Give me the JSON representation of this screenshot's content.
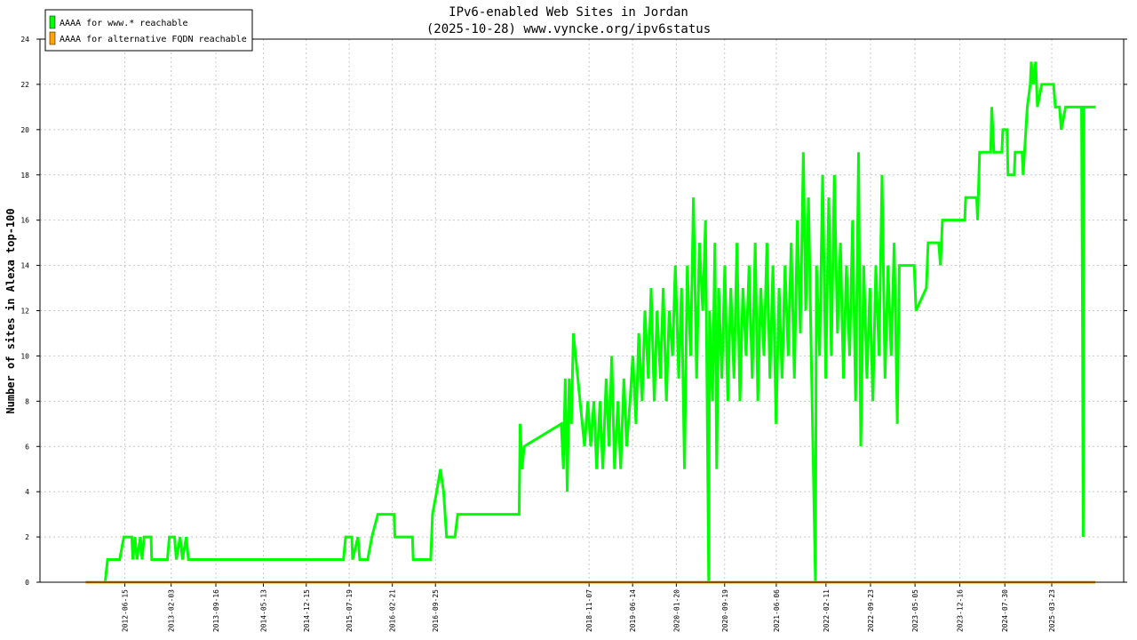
{
  "chart_data": {
    "type": "line",
    "title": "IPv6-enabled Web Sites in Jordan",
    "subtitle": "(2025-10-28) www.vyncke.org/ipv6status",
    "y_label": "Number of sites in Alexa top-100",
    "xlim": [
      "2011-04-15",
      "2026-03-20"
    ],
    "xticks": [
      "2012-06-15",
      "2013-02-03",
      "2013-09-16",
      "2014-05-13",
      "2014-12-15",
      "2015-07-19",
      "2016-02-21",
      "2016-09-25",
      "2018-11-07",
      "2019-06-14",
      "2020-01-20",
      "2020-09-19",
      "2021-06-06",
      "2022-02-11",
      "2022-09-23",
      "2023-05-05",
      "2023-12-16",
      "2024-07-30",
      "2025-03-23"
    ],
    "ylim": [
      0,
      24
    ],
    "yticks": [
      0,
      2,
      4,
      6,
      8,
      10,
      12,
      14,
      16,
      18,
      20,
      22,
      24
    ],
    "grid": true,
    "legend": "upper-left",
    "series": [
      {
        "name": "AAAA for www.* reachable",
        "color": "#00ff00",
        "x": [
          "2012-03-08",
          "2012-03-20",
          "2012-05-20",
          "2012-06-10",
          "2012-07-20",
          "2012-07-25",
          "2012-08-05",
          "2012-08-15",
          "2012-09-01",
          "2012-09-10",
          "2012-09-20",
          "2012-10-25",
          "2012-10-28",
          "2013-01-15",
          "2013-01-25",
          "2013-02-20",
          "2013-03-01",
          "2013-03-20",
          "2013-04-01",
          "2013-04-20",
          "2013-05-01",
          "2015-06-20",
          "2015-07-01",
          "2015-08-01",
          "2015-08-05",
          "2015-09-01",
          "2015-09-10",
          "2015-10-20",
          "2015-11-10",
          "2015-12-10",
          "2016-03-01",
          "2016-03-05",
          "2016-06-01",
          "2016-06-05",
          "2016-09-01",
          "2016-09-10",
          "2016-10-01",
          "2016-10-20",
          "2016-11-05",
          "2016-11-20",
          "2017-01-01",
          "2017-01-15",
          "2017-11-20",
          "2017-11-25",
          "2017-12-05",
          "2017-12-15",
          "2018-06-20",
          "2018-07-01",
          "2018-07-10",
          "2018-07-20",
          "2018-07-30",
          "2018-08-10",
          "2018-08-20",
          "2018-10-15",
          "2018-11-01",
          "2018-11-15",
          "2018-12-01",
          "2018-12-15",
          "2019-01-01",
          "2019-01-15",
          "2019-02-01",
          "2019-02-15",
          "2019-03-01",
          "2019-03-15",
          "2019-04-01",
          "2019-04-15",
          "2019-05-01",
          "2019-05-15",
          "2019-06-01",
          "2019-06-15",
          "2019-07-01",
          "2019-07-15",
          "2019-08-01",
          "2019-08-15",
          "2019-09-01",
          "2019-09-15",
          "2019-10-01",
          "2019-10-15",
          "2019-11-01",
          "2019-11-15",
          "2019-12-01",
          "2019-12-15",
          "2020-01-01",
          "2020-01-15",
          "2020-02-01",
          "2020-02-15",
          "2020-03-01",
          "2020-03-15",
          "2020-04-01",
          "2020-04-15",
          "2020-05-01",
          "2020-05-15",
          "2020-06-01",
          "2020-06-15",
          "2020-07-01",
          "2020-07-05",
          "2020-07-20",
          "2020-08-01",
          "2020-08-10",
          "2020-08-20",
          "2020-09-05",
          "2020-09-20",
          "2020-10-05",
          "2020-10-20",
          "2020-11-05",
          "2020-11-20",
          "2020-12-05",
          "2020-12-20",
          "2021-01-05",
          "2021-01-20",
          "2021-02-05",
          "2021-02-20",
          "2021-03-05",
          "2021-03-20",
          "2021-04-05",
          "2021-04-20",
          "2021-05-05",
          "2021-05-20",
          "2021-06-05",
          "2021-06-20",
          "2021-07-05",
          "2021-07-20",
          "2021-08-05",
          "2021-08-20",
          "2021-09-05",
          "2021-09-20",
          "2021-10-05",
          "2021-10-20",
          "2021-11-01",
          "2021-11-15",
          "2021-12-01",
          "2021-12-20",
          "2021-12-25",
          "2022-01-10",
          "2022-01-25",
          "2022-02-10",
          "2022-02-25",
          "2022-03-10",
          "2022-03-25",
          "2022-04-10",
          "2022-04-25",
          "2022-05-10",
          "2022-05-25",
          "2022-06-10",
          "2022-06-25",
          "2022-07-10",
          "2022-07-25",
          "2022-08-05",
          "2022-08-20",
          "2022-09-05",
          "2022-09-20",
          "2022-10-05",
          "2022-10-20",
          "2022-11-05",
          "2022-11-20",
          "2022-12-05",
          "2022-12-20",
          "2023-01-05",
          "2023-01-20",
          "2023-02-05",
          "2023-02-15",
          "2023-05-01",
          "2023-05-10",
          "2023-07-01",
          "2023-07-10",
          "2023-09-01",
          "2023-09-10",
          "2023-09-20",
          "2024-01-10",
          "2024-01-15",
          "2024-03-10",
          "2024-03-15",
          "2024-03-25",
          "2024-05-20",
          "2024-05-25",
          "2024-06-05",
          "2024-07-15",
          "2024-07-20",
          "2024-08-10",
          "2024-08-15",
          "2024-09-15",
          "2024-09-20",
          "2024-10-25",
          "2024-10-30",
          "2024-11-20",
          "2024-12-05",
          "2024-12-10",
          "2024-12-20",
          "2025-01-01",
          "2025-01-10",
          "2025-02-01",
          "2025-04-01",
          "2025-04-10",
          "2025-05-01",
          "2025-05-10",
          "2025-06-01",
          "2025-08-20",
          "2025-08-25",
          "2025-08-28",
          "2025-09-01",
          "2025-10-28"
        ],
        "values": [
          0,
          1,
          1,
          2,
          2,
          1,
          2,
          1,
          2,
          1,
          2,
          2,
          1,
          1,
          2,
          2,
          1,
          2,
          1,
          2,
          1,
          1,
          2,
          2,
          1,
          2,
          1,
          1,
          2,
          3,
          3,
          2,
          2,
          1,
          1,
          3,
          4,
          5,
          4,
          2,
          2,
          3,
          3,
          7,
          5,
          6,
          7,
          5,
          9,
          4,
          9,
          7,
          11,
          6,
          8,
          6,
          8,
          5,
          8,
          5,
          9,
          6,
          10,
          5,
          8,
          5,
          9,
          6,
          8,
          10,
          7,
          11,
          8,
          12,
          9,
          13,
          8,
          12,
          9,
          13,
          8,
          12,
          10,
          14,
          9,
          13,
          5,
          14,
          10,
          17,
          9,
          15,
          12,
          16,
          0,
          12,
          8,
          15,
          5,
          13,
          9,
          14,
          8,
          13,
          9,
          15,
          8,
          13,
          10,
          14,
          9,
          15,
          8,
          13,
          10,
          15,
          9,
          14,
          7,
          13,
          9,
          14,
          10,
          15,
          9,
          16,
          11,
          19,
          12,
          17,
          9,
          0,
          14,
          10,
          18,
          9,
          17,
          10,
          18,
          11,
          15,
          9,
          14,
          10,
          16,
          8,
          19,
          6,
          14,
          9,
          13,
          8,
          14,
          10,
          18,
          9,
          14,
          10,
          15,
          7,
          14,
          14,
          12,
          13,
          15,
          15,
          14,
          16,
          16,
          17,
          17,
          16,
          19,
          19,
          21,
          19,
          19,
          20,
          20,
          18,
          18,
          19,
          19,
          18,
          21,
          22,
          23,
          22,
          23,
          21,
          22,
          22,
          21,
          21,
          20,
          21,
          21,
          11,
          2,
          21,
          21
        ]
      },
      {
        "name": "AAAA for alternative FQDN reachable",
        "color": "#ffa500",
        "x": [
          "2011-12-01",
          "2025-10-28"
        ],
        "values": [
          0,
          0
        ]
      }
    ]
  }
}
